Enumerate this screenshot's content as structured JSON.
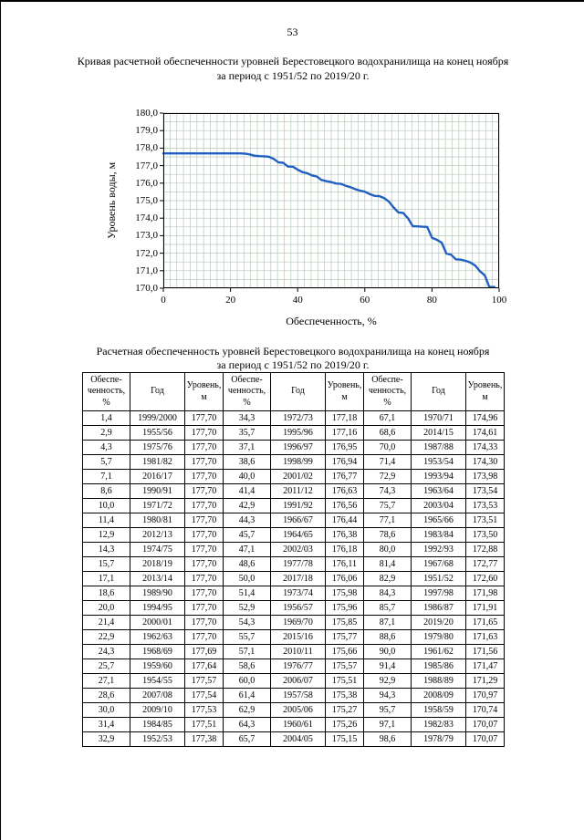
{
  "page": {
    "number": "53"
  },
  "chart": {
    "title_line1": "Кривая расчетной обеспеченности уровней Берестовецкого водохранилища на конец ноября",
    "title_line2": "за период с 1951/52 по 2019/20 г."
  },
  "chart_data": {
    "type": "line",
    "title": "Кривая расчетной обеспеченности уровней Берестовецкого водохранилища на конец ноября за период с 1951/52 по 2019/20 г.",
    "xlabel": "Обеспеченность, %",
    "ylabel": "Уровень воды, м",
    "xlim": [
      0,
      100
    ],
    "ylim": [
      170,
      180
    ],
    "x_ticks": [
      0,
      20,
      40,
      60,
      80,
      100
    ],
    "x_tick_labels": [
      "0",
      "20",
      "40",
      "60",
      "80",
      "100"
    ],
    "y_ticks": [
      180,
      179,
      178,
      177,
      176,
      175,
      174,
      173,
      172,
      171,
      170
    ],
    "y_tick_labels": [
      "180,0",
      "179,0",
      "178,0",
      "177,0",
      "176,0",
      "175,0",
      "174,0",
      "173,0",
      "172,0",
      "171,0",
      "170,0"
    ],
    "x_minor": 2,
    "y_minor": 0.5,
    "grid": true,
    "legend": false,
    "line_color": "#2060c0",
    "grid_color": "#b6c9bb",
    "points": [
      [
        0,
        177.7
      ],
      [
        1.4,
        177.7
      ],
      [
        2.9,
        177.7
      ],
      [
        4.3,
        177.7
      ],
      [
        5.7,
        177.7
      ],
      [
        7.1,
        177.7
      ],
      [
        8.6,
        177.7
      ],
      [
        10,
        177.7
      ],
      [
        11.4,
        177.7
      ],
      [
        12.9,
        177.7
      ],
      [
        14.3,
        177.7
      ],
      [
        15.7,
        177.7
      ],
      [
        17.1,
        177.7
      ],
      [
        18.6,
        177.7
      ],
      [
        20,
        177.7
      ],
      [
        21.4,
        177.7
      ],
      [
        22.9,
        177.7
      ],
      [
        24.3,
        177.69
      ],
      [
        25.7,
        177.64
      ],
      [
        27.1,
        177.57
      ],
      [
        28.6,
        177.54
      ],
      [
        30,
        177.53
      ],
      [
        31.4,
        177.51
      ],
      [
        32.9,
        177.38
      ],
      [
        34.3,
        177.18
      ],
      [
        35.7,
        177.16
      ],
      [
        37.1,
        176.95
      ],
      [
        38.6,
        176.94
      ],
      [
        40,
        176.77
      ],
      [
        41.4,
        176.63
      ],
      [
        42.9,
        176.56
      ],
      [
        44.3,
        176.44
      ],
      [
        45.7,
        176.38
      ],
      [
        47.1,
        176.18
      ],
      [
        48.6,
        176.11
      ],
      [
        50,
        176.06
      ],
      [
        51.4,
        175.98
      ],
      [
        52.9,
        175.96
      ],
      [
        54.3,
        175.85
      ],
      [
        55.7,
        175.77
      ],
      [
        57.1,
        175.66
      ],
      [
        58.6,
        175.57
      ],
      [
        60,
        175.51
      ],
      [
        61.4,
        175.38
      ],
      [
        62.9,
        175.27
      ],
      [
        64.3,
        175.26
      ],
      [
        65.7,
        175.15
      ],
      [
        67.1,
        174.96
      ],
      [
        68.6,
        174.61
      ],
      [
        70,
        174.33
      ],
      [
        71.4,
        174.3
      ],
      [
        72.9,
        173.98
      ],
      [
        74.3,
        173.54
      ],
      [
        75.7,
        173.53
      ],
      [
        77.1,
        173.51
      ],
      [
        78.6,
        173.5
      ],
      [
        80,
        172.88
      ],
      [
        81.4,
        172.77
      ],
      [
        82.9,
        172.6
      ],
      [
        84.3,
        171.98
      ],
      [
        85.7,
        171.91
      ],
      [
        87.1,
        171.65
      ],
      [
        88.6,
        171.63
      ],
      [
        90,
        171.56
      ],
      [
        91.4,
        171.47
      ],
      [
        92.9,
        171.29
      ],
      [
        94.3,
        170.97
      ],
      [
        95.7,
        170.74
      ],
      [
        97.1,
        170.07
      ],
      [
        98.6,
        170.07
      ]
    ]
  },
  "table": {
    "title_line1": "Расчетная обеспеченность уровней Берестовецкого водохранилища на конец ноября",
    "title_line2": "за период с 1951/52 по 2019/20 г.",
    "headers": [
      "Обеспе-\nченность,\n%",
      "Год",
      "Уровень,\nм"
    ],
    "rows": [
      [
        "1,4",
        "1999/2000",
        "177,70",
        "34,3",
        "1972/73",
        "177,18",
        "67,1",
        "1970/71",
        "174,96"
      ],
      [
        "2,9",
        "1955/56",
        "177,70",
        "35,7",
        "1995/96",
        "177,16",
        "68,6",
        "2014/15",
        "174,61"
      ],
      [
        "4,3",
        "1975/76",
        "177,70",
        "37,1",
        "1996/97",
        "176,95",
        "70,0",
        "1987/88",
        "174,33"
      ],
      [
        "5,7",
        "1981/82",
        "177,70",
        "38,6",
        "1998/99",
        "176,94",
        "71,4",
        "1953/54",
        "174,30"
      ],
      [
        "7,1",
        "2016/17",
        "177,70",
        "40,0",
        "2001/02",
        "176,77",
        "72,9",
        "1993/94",
        "173,98"
      ],
      [
        "8,6",
        "1990/91",
        "177,70",
        "41,4",
        "2011/12",
        "176,63",
        "74,3",
        "1963/64",
        "173,54"
      ],
      [
        "10,0",
        "1971/72",
        "177,70",
        "42,9",
        "1991/92",
        "176,56",
        "75,7",
        "2003/04",
        "173,53"
      ],
      [
        "11,4",
        "1980/81",
        "177,70",
        "44,3",
        "1966/67",
        "176,44",
        "77,1",
        "1965/66",
        "173,51"
      ],
      [
        "12,9",
        "2012/13",
        "177,70",
        "45,7",
        "1964/65",
        "176,38",
        "78,6",
        "1983/84",
        "173,50"
      ],
      [
        "14,3",
        "1974/75",
        "177,70",
        "47,1",
        "2002/03",
        "176,18",
        "80,0",
        "1992/93",
        "172,88"
      ],
      [
        "15,7",
        "2018/19",
        "177,70",
        "48,6",
        "1977/78",
        "176,11",
        "81,4",
        "1967/68",
        "172,77"
      ],
      [
        "17,1",
        "2013/14",
        "177,70",
        "50,0",
        "2017/18",
        "176,06",
        "82,9",
        "1951/52",
        "172,60"
      ],
      [
        "18,6",
        "1989/90",
        "177,70",
        "51,4",
        "1973/74",
        "175,98",
        "84,3",
        "1997/98",
        "171,98"
      ],
      [
        "20,0",
        "1994/95",
        "177,70",
        "52,9",
        "1956/57",
        "175,96",
        "85,7",
        "1986/87",
        "171,91"
      ],
      [
        "21,4",
        "2000/01",
        "177,70",
        "54,3",
        "1969/70",
        "175,85",
        "87,1",
        "2019/20",
        "171,65"
      ],
      [
        "22,9",
        "1962/63",
        "177,70",
        "55,7",
        "2015/16",
        "175,77",
        "88,6",
        "1979/80",
        "171,63"
      ],
      [
        "24,3",
        "1968/69",
        "177,69",
        "57,1",
        "2010/11",
        "175,66",
        "90,0",
        "1961/62",
        "171,56"
      ],
      [
        "25,7",
        "1959/60",
        "177,64",
        "58,6",
        "1976/77",
        "175,57",
        "91,4",
        "1985/86",
        "171,47"
      ],
      [
        "27,1",
        "1954/55",
        "177,57",
        "60,0",
        "2006/07",
        "175,51",
        "92,9",
        "1988/89",
        "171,29"
      ],
      [
        "28,6",
        "2007/08",
        "177,54",
        "61,4",
        "1957/58",
        "175,38",
        "94,3",
        "2008/09",
        "170,97"
      ],
      [
        "30,0",
        "2009/10",
        "177,53",
        "62,9",
        "2005/06",
        "175,27",
        "95,7",
        "1958/59",
        "170,74"
      ],
      [
        "31,4",
        "1984/85",
        "177,51",
        "64,3",
        "1960/61",
        "175,26",
        "97,1",
        "1982/83",
        "170,07"
      ],
      [
        "32,9",
        "1952/53",
        "177,38",
        "65,7",
        "2004/05",
        "175,15",
        "98,6",
        "1978/79",
        "170,07"
      ]
    ]
  }
}
